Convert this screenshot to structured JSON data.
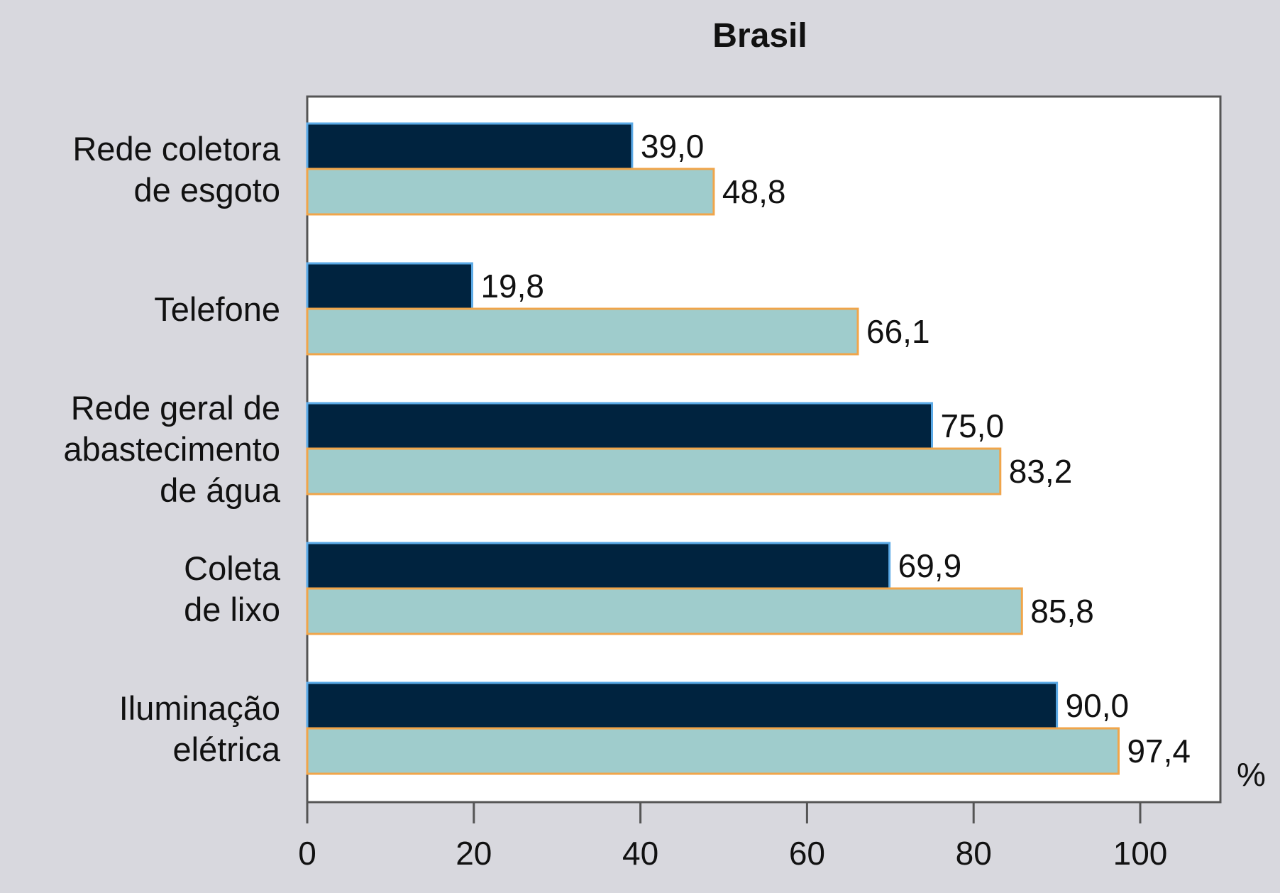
{
  "chart_data": {
    "type": "bar",
    "orientation": "horizontal",
    "title": "Brasil",
    "categories": [
      [
        "Rede coletora",
        "de esgoto"
      ],
      [
        "Telefone"
      ],
      [
        "Rede geral de",
        "abastecimento",
        "de água"
      ],
      [
        "Coleta",
        "de lixo"
      ],
      [
        "Iluminação",
        "elétrica"
      ]
    ],
    "series": [
      {
        "values": [
          39.0,
          19.8,
          75.0,
          69.9,
          90.0
        ],
        "labels": [
          "39,0",
          "19,8",
          "75,0",
          "69,9",
          "90,0"
        ]
      },
      {
        "values": [
          48.8,
          66.1,
          83.2,
          85.8,
          97.4
        ],
        "labels": [
          "48,8",
          "66,1",
          "83,2",
          "85,8",
          "97,4"
        ]
      }
    ],
    "xlim": [
      0,
      110
    ],
    "xticks": [
      0,
      20,
      40,
      60,
      80,
      100
    ],
    "xtick_labels": [
      "0",
      "20",
      "40",
      "60",
      "80",
      "100"
    ],
    "unit_label": "%",
    "grid": false,
    "legend": "none"
  },
  "colors": {
    "background": "#d8d8de",
    "plot_background": "#ffffff",
    "series_fill": [
      "#00233f",
      "#9fcccc"
    ],
    "series_stroke": [
      "#5aa9e6",
      "#f0a54a"
    ],
    "axis": "#555555",
    "text": "#111111"
  }
}
